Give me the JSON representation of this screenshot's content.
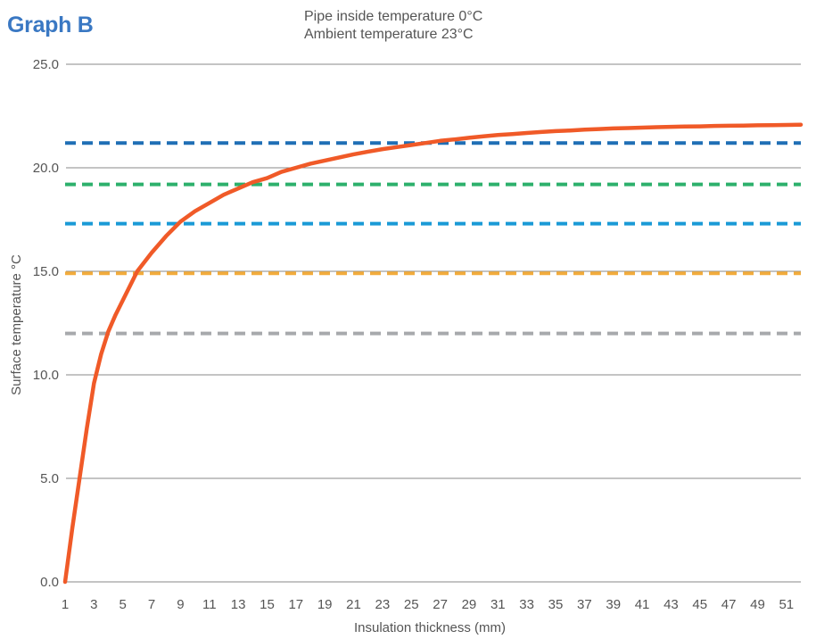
{
  "title": "Graph B",
  "subtitle_lines": [
    "Pipe inside temperature 0°C",
    "Ambient temperature 23°C"
  ],
  "chart_data": {
    "type": "line",
    "title": "Graph B",
    "subtitle": "Pipe inside temperature 0°C / Ambient temperature 23°C",
    "xlabel": "Insulation thickness (mm)",
    "ylabel": "Surface temperature °C",
    "xlim": [
      1,
      52
    ],
    "ylim": [
      0,
      25
    ],
    "x_ticks": [
      "1",
      "3",
      "5",
      "7",
      "9",
      "11",
      "13",
      "15",
      "17",
      "19",
      "21",
      "23",
      "25",
      "27",
      "29",
      "31",
      "33",
      "35",
      "37",
      "39",
      "41",
      "43",
      "45",
      "47",
      "49",
      "51"
    ],
    "y_ticks": [
      "0.0",
      "5.0",
      "10.0",
      "15.0",
      "20.0",
      "25.0"
    ],
    "grid": "horizontal",
    "series": [
      {
        "color": "#f05a28",
        "style": "solid",
        "x": [
          1,
          1.5,
          2,
          2.5,
          3,
          3.5,
          4,
          4.5,
          5,
          5.5,
          6,
          7,
          8,
          9,
          10,
          11,
          12,
          13,
          14,
          15,
          16,
          17,
          18,
          19,
          20,
          21,
          22,
          23,
          24,
          25,
          26,
          27,
          28,
          29,
          30,
          31,
          32,
          33,
          34,
          35,
          36,
          37,
          38,
          39,
          40,
          41,
          42,
          43,
          44,
          45,
          46,
          47,
          48,
          49,
          50,
          51,
          52
        ],
        "y": [
          0,
          2.6,
          5.0,
          7.4,
          9.6,
          11.0,
          12.1,
          12.9,
          13.6,
          14.3,
          15.0,
          15.9,
          16.7,
          17.4,
          17.9,
          18.3,
          18.7,
          19.0,
          19.3,
          19.5,
          19.8,
          20.0,
          20.2,
          20.35,
          20.5,
          20.65,
          20.78,
          20.9,
          21.0,
          21.1,
          21.2,
          21.3,
          21.37,
          21.45,
          21.52,
          21.58,
          21.63,
          21.68,
          21.73,
          21.77,
          21.8,
          21.84,
          21.87,
          21.9,
          21.92,
          21.94,
          21.96,
          21.98,
          21.99,
          22.0,
          22.02,
          22.03,
          22.04,
          22.05,
          22.06,
          22.07,
          22.08
        ]
      },
      {
        "color": "#1f6fb5",
        "style": "dashed",
        "x": [
          1,
          52
        ],
        "y": [
          21.2,
          21.2
        ]
      },
      {
        "color": "#2eb06c",
        "style": "dashed",
        "x": [
          1,
          52
        ],
        "y": [
          19.2,
          19.2
        ]
      },
      {
        "color": "#1a9ad6",
        "style": "dashed",
        "x": [
          1,
          52
        ],
        "y": [
          17.3,
          17.3
        ]
      },
      {
        "color": "#f2ac3d",
        "style": "dashed",
        "x": [
          1,
          52
        ],
        "y": [
          14.9,
          14.9
        ]
      },
      {
        "color": "#a7a9ac",
        "style": "dashed",
        "x": [
          1,
          52
        ],
        "y": [
          12.0,
          12.0
        ]
      }
    ]
  }
}
